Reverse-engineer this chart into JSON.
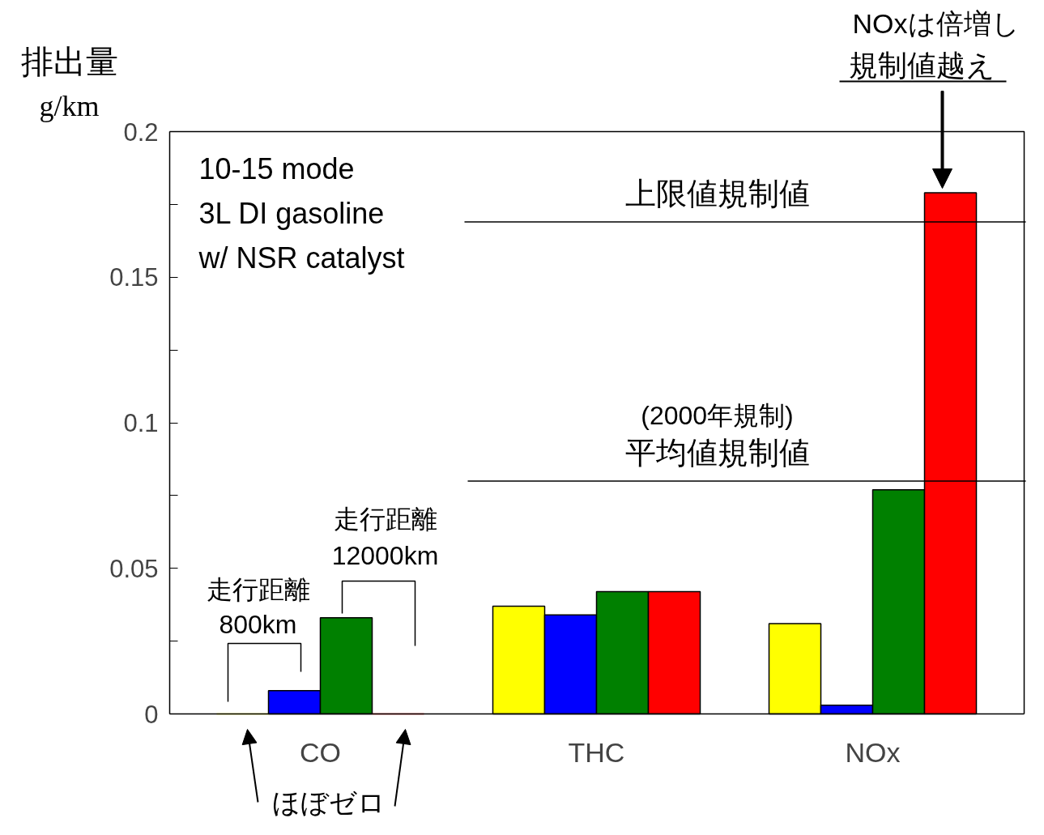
{
  "chart_data": {
    "type": "bar",
    "ylabel": "排出量\ng/km",
    "categories": [
      "CO",
      "THC",
      "NOx"
    ],
    "series": [
      {
        "color": "#ffff00",
        "values": [
          0,
          0.037,
          0.031
        ]
      },
      {
        "color": "#0000ff",
        "values": [
          0.008,
          0.034,
          0.003
        ]
      },
      {
        "color": "#008000",
        "values": [
          0.033,
          0.042,
          0.077
        ]
      },
      {
        "color": "#ff0000",
        "values": [
          0,
          0.042,
          0.179
        ]
      }
    ],
    "ylim": [
      0,
      0.2
    ],
    "yticks": [
      0,
      {
        "value": 0.025,
        "label": null
      },
      0.05,
      {
        "value": 0.075,
        "label": null
      },
      0.1,
      {
        "value": 0.125,
        "label": null
      },
      0.15,
      {
        "value": 0.175,
        "label": null
      },
      0.2
    ],
    "ref_lines": [
      {
        "axis": "y",
        "value": 0.169,
        "label": "上限値規制値"
      },
      {
        "axis": "y",
        "value": 0.08,
        "label": "(2000年規制)\n平均値規制値"
      }
    ],
    "annotations": [
      "10-15 mode\n3L DI gasoline\nw/ NSR catalyst",
      "走行距離\n800km",
      "走行距離\n12000km",
      "ほぼゼロ",
      "NOxは倍増し",
      "規制値越え"
    ],
    "grid": false
  }
}
